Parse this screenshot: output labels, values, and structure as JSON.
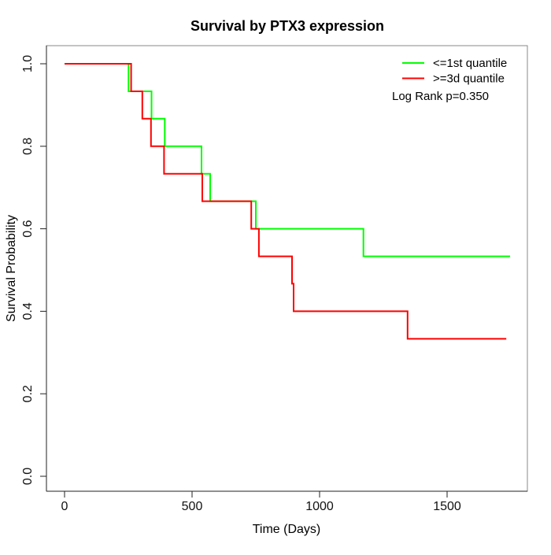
{
  "window": {
    "background": "#ffffff"
  },
  "colors": {
    "axis": "#222222",
    "box": "#888888",
    "text": "#000000",
    "curve_low": "#00ff00",
    "curve_high": "#ff0000"
  },
  "chart_data": {
    "type": "line",
    "variant": "kaplan-meier-step",
    "title": "Survival by PTX3 expression",
    "xlabel": "Time (Days)",
    "ylabel": "Survival Probability",
    "annotation": "Log Rank p=0.350",
    "grid": false,
    "legend_position": "top-right-inside",
    "x_axis": {
      "range": [
        -70,
        1815
      ],
      "ticks": [
        {
          "label": "0",
          "value": 0
        },
        {
          "label": "500",
          "value": 500
        },
        {
          "label": "1000",
          "value": 1000
        },
        {
          "label": "1500",
          "value": 1500
        }
      ]
    },
    "y_axis": {
      "range": [
        -0.04,
        1.04
      ],
      "ticks": [
        {
          "label": "0.0",
          "value": 0.0
        },
        {
          "label": "0.2",
          "value": 0.2
        },
        {
          "label": "0.4",
          "value": 0.4
        },
        {
          "label": "0.6",
          "value": 0.6
        },
        {
          "label": "0.8",
          "value": 0.8
        },
        {
          "label": "1.0",
          "value": 1.0
        }
      ]
    },
    "series": [
      {
        "name": "<=1st quantile",
        "color": "#00ff00",
        "steps": [
          [
            0,
            1.0
          ],
          [
            251,
            0.9333
          ],
          [
            341,
            0.8667
          ],
          [
            393,
            0.8
          ],
          [
            537,
            0.7333
          ],
          [
            571,
            0.6667
          ],
          [
            750,
            0.6
          ],
          [
            1172,
            0.5333
          ]
        ],
        "end_time": 1747
      },
      {
        "name": ">=3d quantile",
        "color": "#ff0000",
        "steps": [
          [
            0,
            1.0
          ],
          [
            261,
            0.9333
          ],
          [
            305,
            0.8667
          ],
          [
            339,
            0.8
          ],
          [
            390,
            0.7333
          ],
          [
            540,
            0.6667
          ],
          [
            732,
            0.6
          ],
          [
            762,
            0.5333
          ],
          [
            892,
            0.4667
          ],
          [
            898,
            0.4
          ],
          [
            1345,
            0.3333
          ]
        ],
        "end_time": 1732
      }
    ]
  },
  "legend": {
    "items": [
      {
        "label": "<=1st quantile",
        "color": "#00ff00"
      },
      {
        "label": ">=3d quantile",
        "color": "#ff0000"
      }
    ]
  }
}
